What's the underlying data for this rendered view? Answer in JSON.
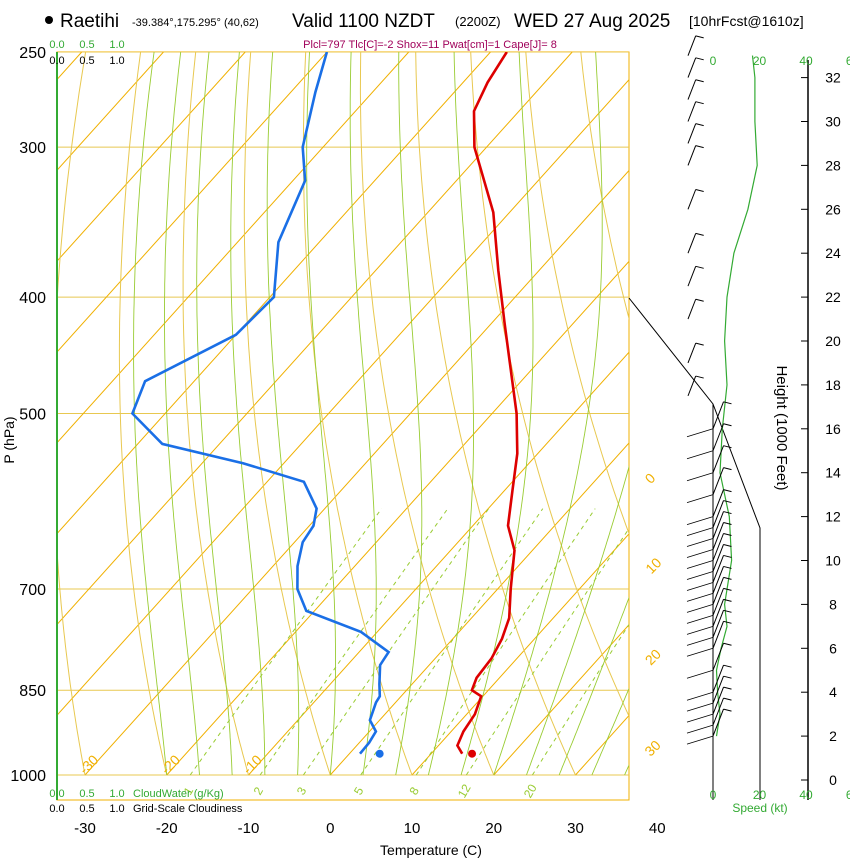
{
  "header": {
    "station": "Raetihi",
    "location": "-39.384°,175.295° (40,62)",
    "valid": "Valid 1100 NZDT",
    "utc": "(2200Z)",
    "date": "WED 27 Aug 2025",
    "forecast": "[10hrFcst@1610z]",
    "params": "Plcl=797 Tlc[C]=-2 Shox=11 Pwat[cm]=1 Cape[J]= 8"
  },
  "colors": {
    "isotherm": "#f0b000",
    "isobar": "#e8c850",
    "dry_adiabat": "#e8c850",
    "moist_adiabat": "#99cc33",
    "mixing_ratio": "#99cc33",
    "temperature": "#dd0000",
    "dewpoint": "#1a6fe6",
    "cloud": "#33aa33",
    "wind_speed": "#33aa33",
    "marker_temp": "#dd0000",
    "marker_dew": "#1a6fe6"
  },
  "chart_data": {
    "type": "line",
    "title": "Skew-T log-P sounding",
    "xlabel": "Temperature (C)",
    "ylabel": "P (hPa)",
    "y2label": "Height (1000 Feet)",
    "xlim": [
      -35,
      45
    ],
    "ylim": [
      1000,
      250
    ],
    "x_ticks": [
      -30,
      -20,
      -10,
      0,
      10,
      20,
      30,
      40
    ],
    "pressure_ticks": [
      250,
      300,
      400,
      500,
      700,
      850,
      1000
    ],
    "height_ticks": [
      0,
      2,
      4,
      6,
      8,
      10,
      12,
      14,
      16,
      18,
      20,
      22,
      24,
      26,
      28,
      30,
      32
    ],
    "isotherm_labels": [
      {
        "t": -30,
        "label": "-30"
      },
      {
        "t": -20,
        "label": "-20"
      },
      {
        "t": -10,
        "label": "-10"
      },
      {
        "t": 0,
        "label": "0"
      },
      {
        "t": 10,
        "label": "10"
      },
      {
        "t": 20,
        "label": "20"
      },
      {
        "t": 30,
        "label": "30"
      }
    ],
    "mixing_ratio_lines": [
      1,
      2,
      3,
      5,
      8,
      12,
      20
    ],
    "temperature": [
      {
        "p": 960,
        "t": 13.8
      },
      {
        "p": 945,
        "t": 12.3
      },
      {
        "p": 920,
        "t": 11.5
      },
      {
        "p": 890,
        "t": 11.0
      },
      {
        "p": 860,
        "t": 9.8
      },
      {
        "p": 850,
        "t": 8.0
      },
      {
        "p": 830,
        "t": 7.2
      },
      {
        "p": 800,
        "t": 6.9
      },
      {
        "p": 770,
        "t": 6.0
      },
      {
        "p": 740,
        "t": 4.6
      },
      {
        "p": 700,
        "t": 1.6
      },
      {
        "p": 650,
        "t": -2.2
      },
      {
        "p": 620,
        "t": -5.7
      },
      {
        "p": 580,
        "t": -9.0
      },
      {
        "p": 540,
        "t": -12.5
      },
      {
        "p": 500,
        "t": -17.0
      },
      {
        "p": 460,
        "t": -22.5
      },
      {
        "p": 420,
        "t": -28.5
      },
      {
        "p": 380,
        "t": -35.0
      },
      {
        "p": 340,
        "t": -42.0
      },
      {
        "p": 300,
        "t": -51.5
      },
      {
        "p": 280,
        "t": -55.5
      },
      {
        "p": 265,
        "t": -57.0
      },
      {
        "p": 250,
        "t": -58.0
      }
    ],
    "dewpoint": [
      {
        "p": 960,
        "t": 1.3
      },
      {
        "p": 940,
        "t": 1.2
      },
      {
        "p": 920,
        "t": 0.8
      },
      {
        "p": 900,
        "t": -1.2
      },
      {
        "p": 870,
        "t": -2.4
      },
      {
        "p": 860,
        "t": -2.6
      },
      {
        "p": 840,
        "t": -4.0
      },
      {
        "p": 810,
        "t": -6.0
      },
      {
        "p": 790,
        "t": -6.4
      },
      {
        "p": 760,
        "t": -12.0
      },
      {
        "p": 730,
        "t": -21.0
      },
      {
        "p": 700,
        "t": -24.5
      },
      {
        "p": 670,
        "t": -27.0
      },
      {
        "p": 640,
        "t": -29.0
      },
      {
        "p": 620,
        "t": -29.5
      },
      {
        "p": 600,
        "t": -31.0
      },
      {
        "p": 570,
        "t": -35.5
      },
      {
        "p": 550,
        "t": -45.0
      },
      {
        "p": 530,
        "t": -57.0
      },
      {
        "p": 500,
        "t": -64.0
      },
      {
        "p": 470,
        "t": -66.0
      },
      {
        "p": 430,
        "t": -60.0
      },
      {
        "p": 400,
        "t": -59.5
      },
      {
        "p": 360,
        "t": -65.0
      },
      {
        "p": 320,
        "t": -68.5
      },
      {
        "p": 300,
        "t": -72.5
      },
      {
        "p": 270,
        "t": -77.0
      },
      {
        "p": 250,
        "t": -80.0
      }
    ],
    "surface": {
      "p": 960,
      "temperature": 15.0,
      "dewpoint": 3.7
    },
    "cloud_axis_ticks": [
      "0.0",
      "0.5",
      "1.0"
    ],
    "cloud_water_label": "CloudWater (g/Kg)",
    "cloudiness_label": "Grid-Scale Cloudiness",
    "wind_speed_axis": {
      "label": "Speed (kt)",
      "ticks": [
        "0",
        "20",
        "40",
        "60"
      ]
    },
    "wind_speed_profile": [
      {
        "h": 2,
        "kt": 1.5
      },
      {
        "h": 3,
        "kt": 3
      },
      {
        "h": 4,
        "kt": 2
      },
      {
        "h": 5,
        "kt": 1.5
      },
      {
        "h": 6,
        "kt": 3.5
      },
      {
        "h": 7,
        "kt": 6
      },
      {
        "h": 8,
        "kt": 5
      },
      {
        "h": 10,
        "kt": 8
      },
      {
        "h": 12,
        "kt": 7
      },
      {
        "h": 14,
        "kt": 3
      },
      {
        "h": 16,
        "kt": 4
      },
      {
        "h": 18,
        "kt": 6
      },
      {
        "h": 20,
        "kt": 5
      },
      {
        "h": 22,
        "kt": 6
      },
      {
        "h": 24,
        "kt": 9
      },
      {
        "h": 26,
        "kt": 15
      },
      {
        "h": 28,
        "kt": 19
      },
      {
        "h": 30,
        "kt": 18
      },
      {
        "h": 32,
        "kt": 18
      },
      {
        "h": 33,
        "kt": 17
      }
    ],
    "wind_barbs_heights": [
      2,
      2.5,
      3,
      3.5,
      4,
      5,
      6,
      6.5,
      7,
      7.5,
      8,
      8.5,
      9,
      9.5,
      10,
      10.5,
      11,
      11.5,
      12,
      13,
      14,
      15,
      16,
      17.5,
      19,
      21,
      22.5,
      24,
      26,
      28,
      29,
      30,
      31,
      32,
      33
    ]
  }
}
